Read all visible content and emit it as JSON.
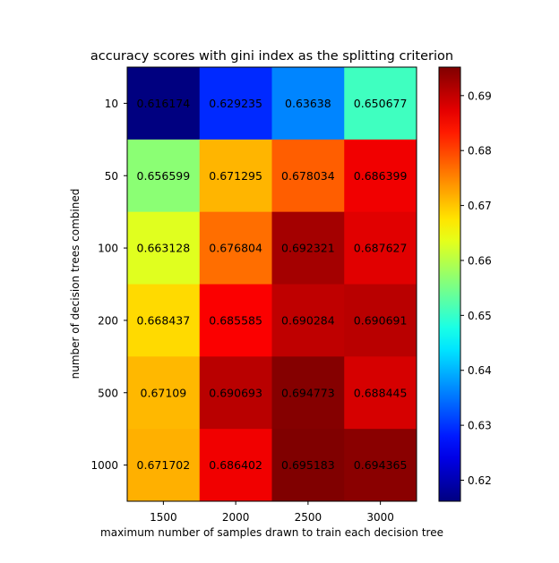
{
  "chart_data": {
    "type": "heatmap",
    "title": "accuracy scores with gini index as the splitting criterion",
    "xlabel": "maximum number of samples drawn to train each decision tree",
    "ylabel": "number of decision trees combined",
    "x_categories": [
      "1500",
      "2000",
      "2500",
      "3000"
    ],
    "y_categories": [
      "10",
      "50",
      "100",
      "200",
      "500",
      "1000"
    ],
    "values": [
      [
        0.616174,
        0.629235,
        0.63638,
        0.650677
      ],
      [
        0.656599,
        0.671295,
        0.678034,
        0.686399
      ],
      [
        0.663128,
        0.676804,
        0.692321,
        0.687627
      ],
      [
        0.668437,
        0.685585,
        0.690284,
        0.690691
      ],
      [
        0.67109,
        0.690693,
        0.694773,
        0.688445
      ],
      [
        0.671702,
        0.686402,
        0.695183,
        0.694365
      ]
    ],
    "value_labels": [
      [
        "0.616174",
        "0.629235",
        "0.63638",
        "0.650677"
      ],
      [
        "0.656599",
        "0.671295",
        "0.678034",
        "0.686399"
      ],
      [
        "0.663128",
        "0.676804",
        "0.692321",
        "0.687627"
      ],
      [
        "0.668437",
        "0.685585",
        "0.690284",
        "0.690691"
      ],
      [
        "0.67109",
        "0.690693",
        "0.694773",
        "0.688445"
      ],
      [
        "0.671702",
        "0.686402",
        "0.695183",
        "0.694365"
      ]
    ],
    "colormap": "jet",
    "colorbar": {
      "range": [
        0.616174,
        0.695183
      ],
      "ticks": [
        0.62,
        0.63,
        0.64,
        0.65,
        0.66,
        0.67,
        0.68,
        0.69
      ],
      "tick_labels": [
        "0.62",
        "0.63",
        "0.64",
        "0.65",
        "0.66",
        "0.67",
        "0.68",
        "0.69"
      ]
    }
  }
}
